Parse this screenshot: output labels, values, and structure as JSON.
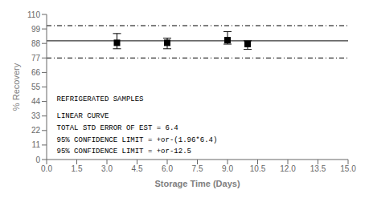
{
  "chart_data": {
    "type": "scatter",
    "xlabel": "Storage Time (Days)",
    "ylabel": "% Recovery",
    "xlim": [
      0.0,
      15.0
    ],
    "ylim": [
      0,
      110
    ],
    "yticks": [
      0,
      11,
      22,
      33,
      44,
      55,
      66,
      77,
      88,
      99,
      110
    ],
    "xticks": [
      {
        "value": 0,
        "label": "0.0"
      },
      1.5,
      {
        "value": 3,
        "label": "3.0"
      },
      4.5,
      {
        "value": 6,
        "label": "6.0"
      },
      7.5,
      {
        "value": 9,
        "label": "9.0"
      },
      10.5,
      {
        "value": 12,
        "label": "12.0"
      },
      13.5,
      {
        "value": 15,
        "label": "15.0"
      }
    ],
    "x": [
      3.5,
      6.0,
      9.0,
      10.0
    ],
    "values": [
      88.5,
      88.5,
      90.5,
      87.5
    ],
    "error_low": [
      4.5,
      4.5,
      3.0,
      4.0
    ],
    "error_high": [
      7.0,
      3.5,
      6.5,
      2.5
    ],
    "color": "#000000",
    "marker": "square",
    "reference_lines": [
      {
        "y": 90.0,
        "line_style": "solid",
        "color": "#000000"
      },
      {
        "y": 101.5,
        "line_style": "dashdot",
        "color": "#000000"
      },
      {
        "y": 77.0,
        "line_style": "dashdot",
        "color": "#000000"
      }
    ],
    "annotations": [
      {
        "text": "REFRIGERATED SAMPLES",
        "x": 0.5,
        "y": 44
      },
      {
        "text": "LINEAR CURVE",
        "x": 0.5,
        "y": 31
      },
      {
        "text": "TOTAL STD ERROR OF EST = 6.4",
        "x": 0.5,
        "y": 22
      },
      {
        "text": "95% CONFIDENCE LIMIT = +or-(1.96*6.4)",
        "x": 0.5,
        "y": 13
      },
      {
        "text": "95% CONFIDENCE LIMIT = +or-12.5",
        "x": 0.5,
        "y": 4
      }
    ],
    "annotation_color": "#000000",
    "grid": false
  }
}
